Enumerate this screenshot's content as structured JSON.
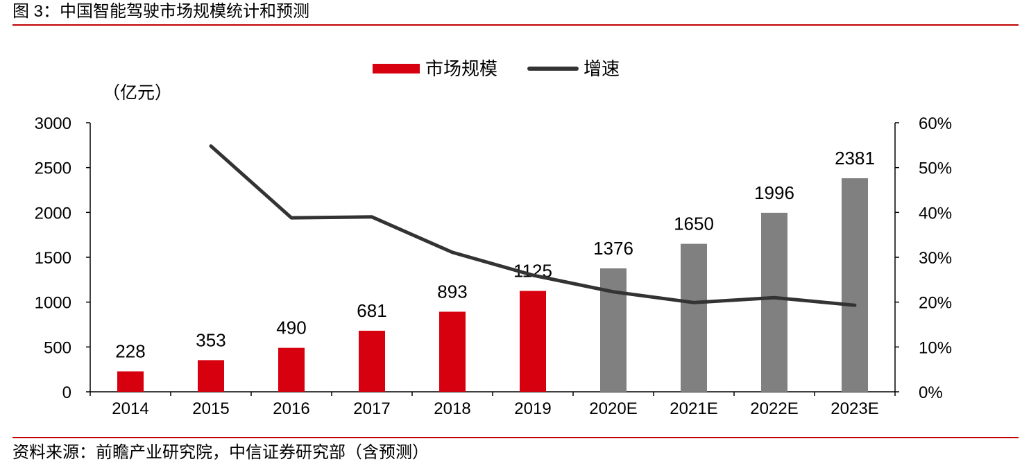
{
  "figure_title": "图 3：中国智能驾驶市场规模统计和预测",
  "source": "资料来源：前瞻产业研究院，中信证券研究部（含预测）",
  "colors": {
    "actual_bar": "#d7000f",
    "forecast_bar": "#808080",
    "line": "#333333",
    "rule": "#c00000"
  },
  "chart_data": {
    "type": "bar",
    "title": "",
    "unit_label": "（亿元）",
    "categories": [
      "2014",
      "2015",
      "2016",
      "2017",
      "2018",
      "2019",
      "2020E",
      "2021E",
      "2022E",
      "2023E"
    ],
    "series": [
      {
        "name": "市场规模",
        "type": "bar",
        "axis": "left",
        "values": [
          228,
          353,
          490,
          681,
          893,
          1125,
          1376,
          1650,
          1996,
          2381
        ],
        "labels": [
          "228",
          "353",
          "490",
          "681",
          "893",
          "1125",
          "1376",
          "1650",
          "1996",
          "2381"
        ],
        "forecast": [
          false,
          false,
          false,
          false,
          false,
          false,
          true,
          true,
          true,
          true
        ]
      },
      {
        "name": "增速",
        "type": "line",
        "axis": "right",
        "values": [
          null,
          54.8,
          38.8,
          39.0,
          31.1,
          26.0,
          22.3,
          19.9,
          21.0,
          19.3
        ]
      }
    ],
    "y_left": {
      "ylim": [
        0,
        3000
      ],
      "ticks": [
        0,
        500,
        1000,
        1500,
        2000,
        2500,
        3000
      ],
      "tick_labels": [
        "0",
        "500",
        "1000",
        "1500",
        "2000",
        "2500",
        "3000"
      ]
    },
    "y_right": {
      "ylim": [
        0,
        60
      ],
      "ticks": [
        0,
        10,
        20,
        30,
        40,
        50,
        60
      ],
      "tick_labels": [
        "0%",
        "10%",
        "20%",
        "30%",
        "40%",
        "50%",
        "60%"
      ]
    },
    "legend": {
      "position": "top-center",
      "entries": [
        "市场规模",
        "增速"
      ]
    },
    "grid": false
  }
}
